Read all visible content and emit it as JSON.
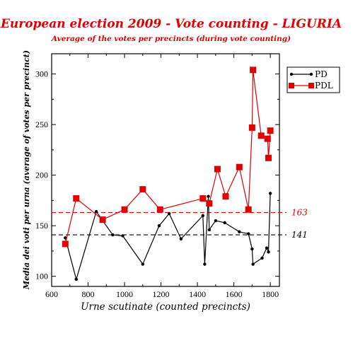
{
  "chart_data": {
    "type": "line",
    "title": "European election 2009 - Vote counting - LIGURIA",
    "subtitle": "Average of the votes per precincts  (during vote counting)",
    "xlabel": "Urne scutinate (counted precincts)",
    "ylabel": "Media dei voti per urna (average of votes per precinct)",
    "xlim": [
      600,
      1850
    ],
    "ylim": [
      90,
      320
    ],
    "x_ticks": [
      600,
      800,
      1000,
      1200,
      1400,
      1600,
      1800
    ],
    "x_tick_labels": [
      "600",
      "800",
      "1000",
      "1200",
      "1400",
      "1600",
      "1800"
    ],
    "y_ticks": [
      100,
      150,
      200,
      250,
      300
    ],
    "y_tick_labels": [
      "100",
      "150",
      "200",
      "250",
      "300"
    ],
    "grid": false,
    "legend_position": "top-right",
    "series": [
      {
        "name": "PD",
        "color": "#000000",
        "marker": "circle",
        "x": [
          675,
          735,
          845,
          935,
          990,
          1100,
          1190,
          1245,
          1310,
          1430,
          1440,
          1460,
          1465,
          1500,
          1550,
          1630,
          1680,
          1700,
          1705,
          1755,
          1780,
          1790,
          1800
        ],
        "y": [
          138,
          97,
          164,
          141,
          140,
          112,
          150,
          162,
          137,
          160,
          112,
          179,
          146,
          155,
          153,
          144,
          142,
          127,
          112,
          118,
          128,
          124,
          182
        ]
      },
      {
        "name": "PDL",
        "color": "#e00000",
        "marker": "square",
        "x": [
          675,
          735,
          880,
          1000,
          1100,
          1195,
          1430,
          1465,
          1510,
          1555,
          1630,
          1680,
          1700,
          1705,
          1750,
          1785,
          1790,
          1800
        ],
        "y": [
          132,
          177,
          156,
          166,
          186,
          166,
          177,
          172,
          206,
          179,
          208,
          166,
          247,
          304,
          239,
          236,
          217,
          244
        ]
      }
    ],
    "reference_lines": [
      {
        "value": 163,
        "label": "163",
        "color": "#e00000"
      },
      {
        "value": 141,
        "label": "141",
        "color": "#000000"
      }
    ],
    "colors": {
      "title": "#e00000",
      "subtitle": "#e00000",
      "pd": "#000000",
      "pdl": "#e00000"
    }
  }
}
